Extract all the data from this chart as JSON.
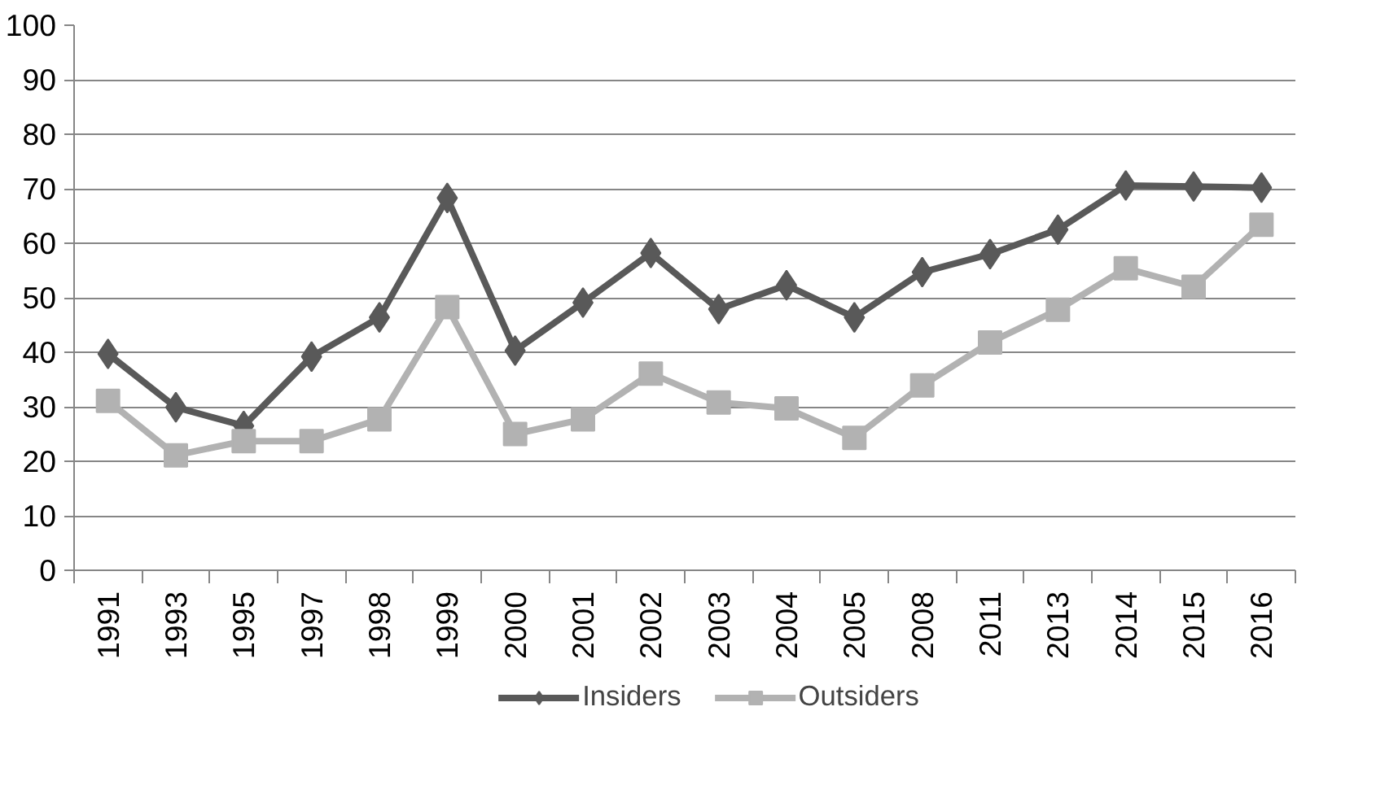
{
  "chart_data": {
    "type": "line",
    "categories": [
      "1991",
      "1993",
      "1995",
      "1997",
      "1998",
      "1999",
      "2000",
      "2001",
      "2002",
      "2003",
      "2004",
      "2005",
      "2008",
      "2011",
      "2013",
      "2014",
      "2015",
      "2016"
    ],
    "series": [
      {
        "name": "Insiders",
        "color": "#595959",
        "marker": "diamond",
        "values": [
          39.7,
          29.9,
          26.5,
          39.2,
          46.4,
          68.3,
          40.3,
          49.1,
          58.2,
          47.9,
          52.3,
          46.4,
          54.7,
          58.0,
          62.5,
          70.6,
          70.4,
          70.2
        ]
      },
      {
        "name": "Outsiders",
        "color": "#b2b2b2",
        "marker": "square",
        "values": [
          31.1,
          21.1,
          23.7,
          23.7,
          27.7,
          48.3,
          25.0,
          27.7,
          36.1,
          30.8,
          29.7,
          24.3,
          33.9,
          41.8,
          47.8,
          55.4,
          52.0,
          63.4
        ]
      }
    ],
    "ylim": [
      0,
      100
    ],
    "yticks": [
      0,
      10,
      20,
      30,
      40,
      50,
      60,
      70,
      80,
      90,
      100
    ],
    "grid": "y",
    "legend": "bottom",
    "line_style": "solid"
  }
}
